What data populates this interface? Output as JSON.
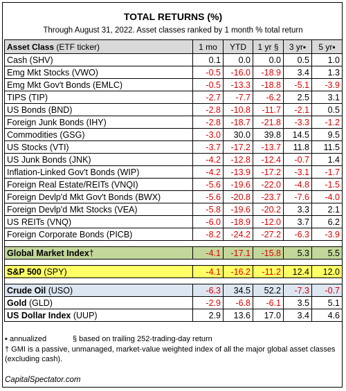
{
  "title": "TOTAL RETURNS (%)",
  "subtitle": "Through August 31, 2022. Asset classes ranked by 1 month % total return",
  "header": {
    "asset_bold": "Asset Class",
    "asset_rest": " (ETF ticker)",
    "cols": [
      "1 mo",
      "YTD",
      "1 yr §",
      "3 yr▪",
      "5 yr▪"
    ]
  },
  "rows": [
    {
      "name": "Cash (SHV)",
      "v": [
        "0.1",
        "0.0",
        "0.0",
        "0.5",
        "1.0"
      ]
    },
    {
      "name": "Emg Mkt Stocks (VWO)",
      "v": [
        "-0.5",
        "-16.0",
        "-18.9",
        "3.4",
        "1.3"
      ]
    },
    {
      "name": "Emg Mkt Gov't Bonds (EMLC)",
      "v": [
        "-0.5",
        "-13.3",
        "-18.8",
        "-5.1",
        "-3.9"
      ]
    },
    {
      "name": "TIPS (TIP)",
      "v": [
        "-2.7",
        "-7.7",
        "-6.2",
        "2.5",
        "3.1"
      ]
    },
    {
      "name": "US Bonds (BND)",
      "v": [
        "-2.8",
        "-10.8",
        "-11.7",
        "-2.1",
        "0.5"
      ]
    },
    {
      "name": "Foreign Junk Bonds (IHY)",
      "v": [
        "-2.8",
        "-18.7",
        "-21.8",
        "-3.3",
        "-1.2"
      ]
    },
    {
      "name": "Commodities (GSG)",
      "v": [
        "-3.0",
        "30.0",
        "39.8",
        "14.5",
        "9.5"
      ]
    },
    {
      "name": "US Stocks (VTI)",
      "v": [
        "-3.7",
        "-17.2",
        "-13.7",
        "11.8",
        "11.5"
      ]
    },
    {
      "name": "US Junk Bonds (JNK)",
      "v": [
        "-4.2",
        "-12.8",
        "-12.4",
        "-0.7",
        "1.4"
      ]
    },
    {
      "name": "Inflation-Linked Gov't Bonds (WIP)",
      "v": [
        "-4.2",
        "-13.9",
        "-17.2",
        "-3.1",
        "-1.7"
      ]
    },
    {
      "name": "Foreign Real Estate/REITs (VNQI)",
      "v": [
        "-5.6",
        "-19.6",
        "-22.0",
        "-4.8",
        "-1.5"
      ]
    },
    {
      "name": "Foreign Devlp'd Mkt Gov't Bonds (BWX)",
      "v": [
        "-5.6",
        "-20.8",
        "-23.7",
        "-7.6",
        "-4.0"
      ]
    },
    {
      "name": "Foreign Devlp'd Mkt Stocks (VEA)",
      "v": [
        "-5.8",
        "-19.6",
        "-20.2",
        "3.3",
        "2.1"
      ]
    },
    {
      "name": "US REITs (VNQ)",
      "v": [
        "-6.0",
        "-18.9",
        "-12.0",
        "3.7",
        "6.2"
      ]
    },
    {
      "name": "Foreign Corporate Bonds (PICB)",
      "v": [
        "-8.2",
        "-24.2",
        "-27.2",
        "-6.3",
        "-3.9"
      ]
    }
  ],
  "gmi": {
    "name_bold": "Global Market Index",
    "name_rest": "†",
    "v": [
      "-4.1",
      "-17.1",
      "-15.8",
      "5.3",
      "5.5"
    ]
  },
  "spy": {
    "name_bold": "S&P 500",
    "name_rest": " (SPY)",
    "v": [
      "-4.1",
      "-16.2",
      "-11.2",
      "12.4",
      "12.0"
    ]
  },
  "commodities": [
    {
      "name_bold": "Crude Oil",
      "name_rest": " (USO)",
      "v": [
        "-6.3",
        "34.5",
        "52.2",
        "-7.3",
        "-0.7"
      ]
    },
    {
      "name_bold": "Gold",
      "name_rest": " (GLD)",
      "v": [
        "-2.9",
        "-6.8",
        "-6.1",
        "3.5",
        "5.1"
      ]
    },
    {
      "name_bold": "US Dollar Index",
      "name_rest": " (UUP)",
      "v": [
        "2.9",
        "13.6",
        "17.0",
        "3.4",
        "4.6"
      ]
    }
  ],
  "footnotes": {
    "annualized": "▪ annualized",
    "trailing": "§ based on trailing 252-trading-day return",
    "gmi_note": "† GMI is a passive, unmanaged, market-value weighted index of all the major global asset classes (excluding cash)."
  },
  "brand": "CapitalSpectator.com",
  "colors": {
    "negative": "#e00000",
    "header_bg": "#d9d9d9",
    "gmi_bg": "#c4d79b",
    "spy_bg": "#ffff66",
    "commodity_bg": "#dce6f1"
  }
}
